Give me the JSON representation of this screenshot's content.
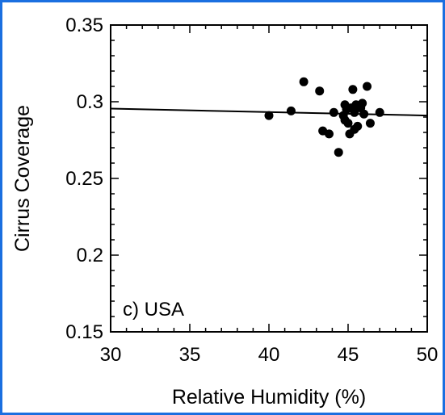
{
  "colors": {
    "frame": "#1a6fe0",
    "ink": "#000000",
    "background": "#ffffff"
  },
  "chart_data": {
    "type": "scatter",
    "title": "",
    "panel_label": "c) USA",
    "xlabel": "Relative Humidity (%)",
    "ylabel": "Cirrus Coverage",
    "xlim": [
      30,
      50
    ],
    "ylim": [
      0.15,
      0.35
    ],
    "x_ticks": [
      "30",
      "35",
      "40",
      "45",
      "50"
    ],
    "y_ticks": [
      "0.15",
      "0.2",
      "0.25",
      "0.3",
      "0.35"
    ],
    "grid": false,
    "legend": "none",
    "points": [
      {
        "x": 40.0,
        "y": 0.291
      },
      {
        "x": 41.4,
        "y": 0.294
      },
      {
        "x": 42.2,
        "y": 0.313
      },
      {
        "x": 43.2,
        "y": 0.307
      },
      {
        "x": 43.4,
        "y": 0.281
      },
      {
        "x": 43.8,
        "y": 0.279
      },
      {
        "x": 44.1,
        "y": 0.293
      },
      {
        "x": 44.4,
        "y": 0.267
      },
      {
        "x": 44.7,
        "y": 0.291
      },
      {
        "x": 44.8,
        "y": 0.298
      },
      {
        "x": 44.8,
        "y": 0.288
      },
      {
        "x": 44.9,
        "y": 0.295
      },
      {
        "x": 45.0,
        "y": 0.286
      },
      {
        "x": 45.1,
        "y": 0.279
      },
      {
        "x": 45.2,
        "y": 0.296
      },
      {
        "x": 45.3,
        "y": 0.308
      },
      {
        "x": 45.4,
        "y": 0.282
      },
      {
        "x": 45.4,
        "y": 0.293
      },
      {
        "x": 45.5,
        "y": 0.298
      },
      {
        "x": 45.6,
        "y": 0.284
      },
      {
        "x": 45.8,
        "y": 0.296
      },
      {
        "x": 45.9,
        "y": 0.299
      },
      {
        "x": 46.0,
        "y": 0.292
      },
      {
        "x": 46.2,
        "y": 0.31
      },
      {
        "x": 46.4,
        "y": 0.286
      },
      {
        "x": 47.0,
        "y": 0.293
      }
    ],
    "fit_line": {
      "x": [
        30,
        50
      ],
      "y": [
        0.2955,
        0.291
      ]
    }
  }
}
